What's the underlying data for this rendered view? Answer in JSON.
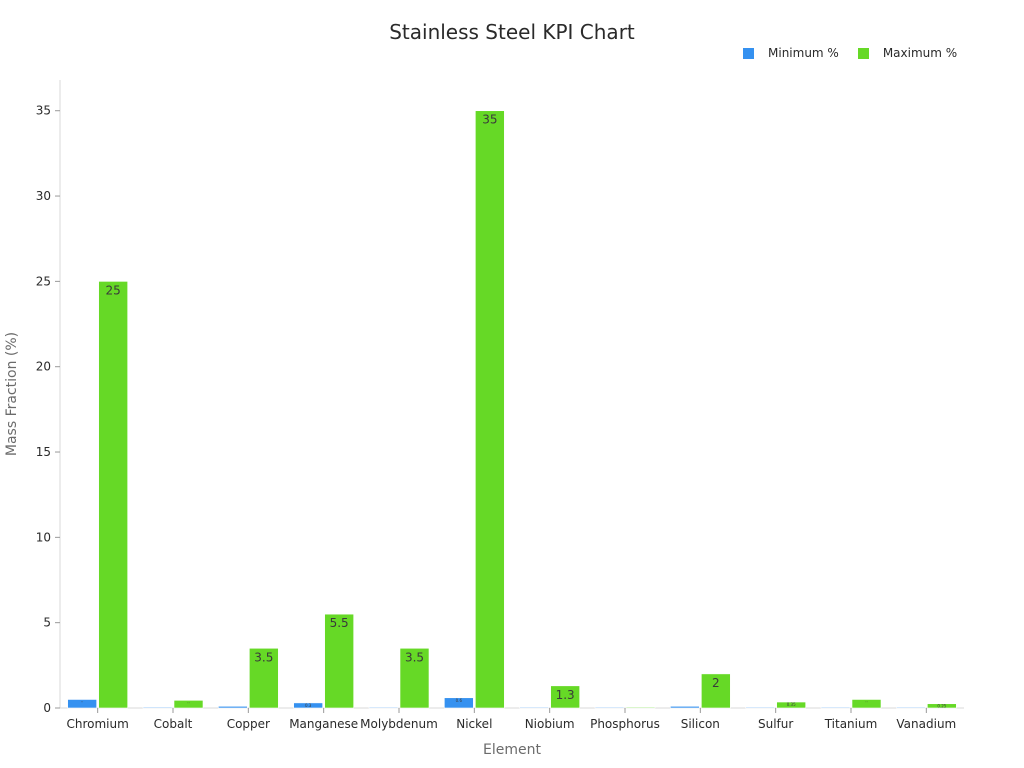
{
  "chart_data": {
    "type": "bar",
    "title": "Stainless Steel KPI Chart",
    "xlabel": "Element",
    "ylabel": "Mass Fraction (%)",
    "ylim": [
      0,
      36.8
    ],
    "yticks": [
      0,
      5,
      10,
      15,
      20,
      25,
      30,
      35
    ],
    "grid": false,
    "legend_position": "top-right",
    "categories": [
      "Chromium",
      "Cobalt",
      "Copper",
      "Manganese",
      "Molybdenum",
      "Nickel",
      "Niobium",
      "Phosphorus",
      "Silicon",
      "Sulfur",
      "Titanium",
      "Vanadium"
    ],
    "series": [
      {
        "name": "Minimum %",
        "color": "#3591f0",
        "values": [
          0.5,
          0.05,
          0.1,
          0.3,
          0.02,
          0.6,
          0.02,
          0.01,
          0.1,
          0.01,
          0.01,
          0.01
        ],
        "labels": [
          "··",
          "",
          "",
          "0.3",
          "",
          "0.6",
          "",
          "",
          "",
          "",
          "",
          ""
        ]
      },
      {
        "name": "Maximum %",
        "color": "#66d926",
        "values": [
          25,
          0.45,
          3.5,
          5.5,
          3.5,
          35,
          1.3,
          0.05,
          2,
          0.35,
          0.5,
          0.25
        ],
        "labels": [
          "25",
          "··",
          "3.5",
          "5.5",
          "3.5",
          "35",
          "1.3",
          "",
          "2",
          "0.35",
          "··",
          "0.25"
        ]
      }
    ]
  }
}
